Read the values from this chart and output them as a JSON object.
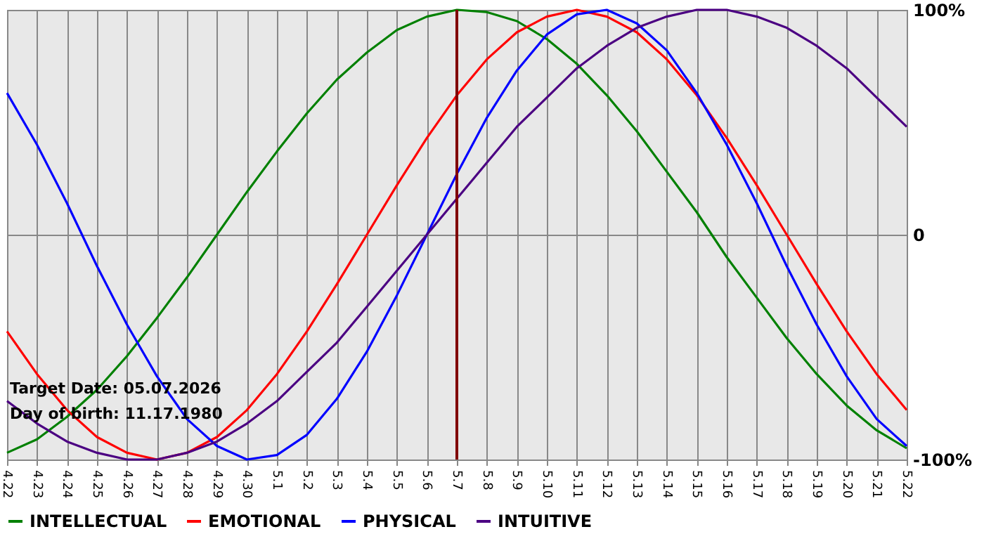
{
  "chart_data": {
    "type": "line",
    "categories": [
      "4.22",
      "4.23",
      "4.24",
      "4.25",
      "4.26",
      "4.27",
      "4.28",
      "4.29",
      "4.30",
      "5.1",
      "5.2",
      "5.3",
      "5.4",
      "5.5",
      "5.6",
      "5.7",
      "5.8",
      "5.9",
      "5.10",
      "5.11",
      "5.12",
      "5.13",
      "5.14",
      "5.15",
      "5.16",
      "5.17",
      "5.18",
      "5.19",
      "5.20",
      "5.21",
      "5.22"
    ],
    "series": [
      {
        "name": "INTELLECTUAL",
        "color": "#008000",
        "values": [
          -97,
          -91,
          -81,
          -69,
          -54,
          -37,
          -19,
          0,
          19,
          37,
          54,
          69,
          81,
          91,
          97,
          100,
          99,
          95,
          87,
          76,
          62,
          46,
          28,
          10,
          -10,
          -28,
          -46,
          -62,
          -76,
          -87,
          -95
        ]
      },
      {
        "name": "EMOTIONAL",
        "color": "#ff0000",
        "values": [
          -43,
          -62,
          -78,
          -90,
          -97,
          -100,
          -97,
          -90,
          -78,
          -62,
          -43,
          -22,
          0,
          22,
          43,
          62,
          78,
          90,
          97,
          100,
          97,
          90,
          78,
          62,
          43,
          22,
          0,
          -22,
          -43,
          -62,
          -78
        ]
      },
      {
        "name": "PHYSICAL",
        "color": "#0000ff",
        "values": [
          63,
          40,
          14,
          -14,
          -40,
          -63,
          -82,
          -94,
          -100,
          -98,
          -89,
          -73,
          -52,
          -27,
          0,
          27,
          52,
          73,
          89,
          98,
          100,
          94,
          82,
          63,
          40,
          14,
          -14,
          -40,
          -63,
          -82,
          -94
        ]
      },
      {
        "name": "INTUITIVE",
        "color": "#4b0082",
        "values": [
          -74,
          -84,
          -92,
          -97,
          -100,
          -100,
          -97,
          -92,
          -84,
          -74,
          -61,
          -48,
          -32,
          -16,
          0,
          16,
          32,
          48,
          61,
          74,
          84,
          92,
          97,
          100,
          100,
          97,
          92,
          84,
          74,
          61,
          48
        ]
      }
    ],
    "ylim": [
      -100,
      100
    ],
    "yticks": [
      {
        "value": -100,
        "label": "-100%"
      },
      0,
      {
        "value": 100,
        "label": "100%"
      }
    ],
    "grid": true,
    "legend": "bottom left",
    "ref_lines": [
      {
        "axis": "x",
        "value": "5.7",
        "color": "#800000"
      }
    ],
    "annotations": [
      "Target Date: 05.07.2026",
      "Day of birth: 11.17.1980"
    ]
  }
}
